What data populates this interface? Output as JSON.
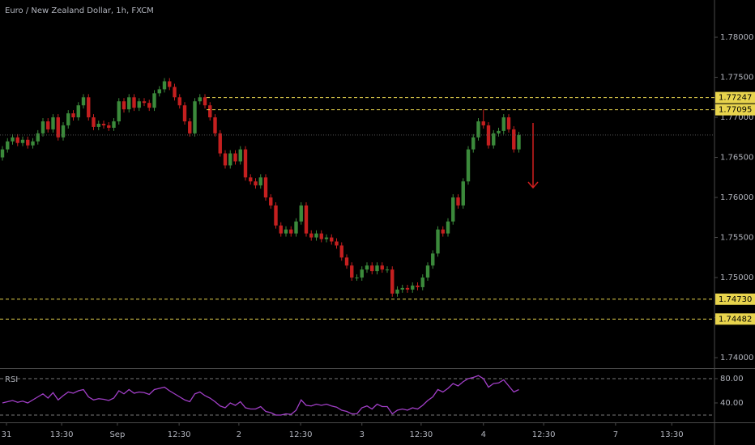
{
  "chart_data": [
    {
      "type": "candlestick",
      "title": "Euro / New Zealand Dollar, 1h, FXCM",
      "up_color": "#3b8a3b",
      "down_color": "#c41f1f",
      "ohlc": [
        [
          1.765,
          1.7664,
          1.7646,
          1.766
        ],
        [
          1.766,
          1.7674,
          1.7656,
          1.767
        ],
        [
          1.767,
          1.7679,
          1.7666,
          1.7675
        ],
        [
          1.7675,
          1.7679,
          1.7664,
          1.7668
        ],
        [
          1.7668,
          1.7676,
          1.7664,
          1.7672
        ],
        [
          1.7672,
          1.7676,
          1.7661,
          1.7665
        ],
        [
          1.7665,
          1.7674,
          1.7661,
          1.767
        ],
        [
          1.767,
          1.7684,
          1.7666,
          1.768
        ],
        [
          1.768,
          1.7699,
          1.7676,
          1.7695
        ],
        [
          1.7695,
          1.7699,
          1.7681,
          1.7685
        ],
        [
          1.7685,
          1.7704,
          1.7681,
          1.77
        ],
        [
          1.77,
          1.7704,
          1.7671,
          1.7675
        ],
        [
          1.7675,
          1.7694,
          1.7671,
          1.769
        ],
        [
          1.769,
          1.7709,
          1.7686,
          1.7705
        ],
        [
          1.7705,
          1.7709,
          1.7696,
          1.77
        ],
        [
          1.77,
          1.7719,
          1.7696,
          1.7715
        ],
        [
          1.7715,
          1.7729,
          1.7711,
          1.7725
        ],
        [
          1.7725,
          1.7729,
          1.7696,
          1.77
        ],
        [
          1.77,
          1.7704,
          1.7684,
          1.7688
        ],
        [
          1.7688,
          1.7696,
          1.7684,
          1.7692
        ],
        [
          1.7692,
          1.7696,
          1.7686,
          1.769
        ],
        [
          1.769,
          1.7694,
          1.7683,
          1.7687
        ],
        [
          1.7687,
          1.7699,
          1.7683,
          1.7695
        ],
        [
          1.7695,
          1.7724,
          1.7691,
          1.772
        ],
        [
          1.772,
          1.7724,
          1.7706,
          1.771
        ],
        [
          1.771,
          1.7729,
          1.7706,
          1.7725
        ],
        [
          1.7725,
          1.7729,
          1.7708,
          1.7712
        ],
        [
          1.7712,
          1.7724,
          1.7708,
          1.772
        ],
        [
          1.772,
          1.7724,
          1.7714,
          1.7718
        ],
        [
          1.7718,
          1.7722,
          1.7708,
          1.7712
        ],
        [
          1.7712,
          1.7734,
          1.7708,
          1.773
        ],
        [
          1.773,
          1.7739,
          1.7726,
          1.7735
        ],
        [
          1.7735,
          1.7749,
          1.7731,
          1.7745
        ],
        [
          1.7745,
          1.7749,
          1.7734,
          1.7738
        ],
        [
          1.7738,
          1.7742,
          1.7721,
          1.7725
        ],
        [
          1.7725,
          1.7729,
          1.7711,
          1.7715
        ],
        [
          1.7715,
          1.7719,
          1.7691,
          1.7695
        ],
        [
          1.7695,
          1.7699,
          1.7676,
          1.768
        ],
        [
          1.768,
          1.7724,
          1.7676,
          1.772
        ],
        [
          1.772,
          1.7729,
          1.7716,
          1.7725
        ],
        [
          1.7725,
          1.7729,
          1.7711,
          1.7715
        ],
        [
          1.7715,
          1.7719,
          1.7696,
          1.77
        ],
        [
          1.77,
          1.7704,
          1.7676,
          1.768
        ],
        [
          1.768,
          1.7684,
          1.7651,
          1.7655
        ],
        [
          1.7655,
          1.7659,
          1.7636,
          1.764
        ],
        [
          1.764,
          1.7659,
          1.7636,
          1.7655
        ],
        [
          1.7655,
          1.7659,
          1.7641,
          1.7645
        ],
        [
          1.7645,
          1.7664,
          1.7641,
          1.766
        ],
        [
          1.766,
          1.7664,
          1.7621,
          1.7625
        ],
        [
          1.7625,
          1.7629,
          1.7616,
          1.762
        ],
        [
          1.762,
          1.7624,
          1.7611,
          1.7615
        ],
        [
          1.7615,
          1.7629,
          1.7611,
          1.7625
        ],
        [
          1.7625,
          1.7629,
          1.7596,
          1.76
        ],
        [
          1.76,
          1.7604,
          1.7586,
          1.759
        ],
        [
          1.759,
          1.7594,
          1.7561,
          1.7565
        ],
        [
          1.7565,
          1.7569,
          1.7551,
          1.7555
        ],
        [
          1.7555,
          1.7564,
          1.7551,
          1.756
        ],
        [
          1.756,
          1.7564,
          1.7551,
          1.7555
        ],
        [
          1.7555,
          1.7574,
          1.7551,
          1.757
        ],
        [
          1.757,
          1.7594,
          1.7566,
          1.759
        ],
        [
          1.759,
          1.7594,
          1.7551,
          1.7555
        ],
        [
          1.7555,
          1.7559,
          1.7546,
          1.755
        ],
        [
          1.755,
          1.7559,
          1.7546,
          1.7555
        ],
        [
          1.7555,
          1.7559,
          1.7544,
          1.7548
        ],
        [
          1.7548,
          1.7554,
          1.7544,
          1.755
        ],
        [
          1.755,
          1.7554,
          1.7541,
          1.7545
        ],
        [
          1.7545,
          1.7549,
          1.7536,
          1.754
        ],
        [
          1.754,
          1.7544,
          1.7521,
          1.7525
        ],
        [
          1.7525,
          1.7529,
          1.7511,
          1.7515
        ],
        [
          1.7515,
          1.7519,
          1.7496,
          1.75
        ],
        [
          1.75,
          1.7504,
          1.7496,
          1.75
        ],
        [
          1.75,
          1.7514,
          1.7496,
          1.751
        ],
        [
          1.751,
          1.7519,
          1.7506,
          1.7515
        ],
        [
          1.7515,
          1.7519,
          1.7504,
          1.7508
        ],
        [
          1.7508,
          1.7519,
          1.7504,
          1.7515
        ],
        [
          1.7515,
          1.7519,
          1.7506,
          1.751
        ],
        [
          1.751,
          1.7514,
          1.7506,
          1.751
        ],
        [
          1.751,
          1.7514,
          1.7476,
          1.748
        ],
        [
          1.748,
          1.7489,
          1.7476,
          1.7485
        ],
        [
          1.7485,
          1.7491,
          1.7481,
          1.7487
        ],
        [
          1.7487,
          1.7491,
          1.7481,
          1.7485
        ],
        [
          1.7485,
          1.7494,
          1.7481,
          1.749
        ],
        [
          1.749,
          1.7494,
          1.7484,
          1.7488
        ],
        [
          1.7488,
          1.7504,
          1.7484,
          1.75
        ],
        [
          1.75,
          1.7519,
          1.7496,
          1.7515
        ],
        [
          1.7515,
          1.7534,
          1.7511,
          1.753
        ],
        [
          1.753,
          1.7564,
          1.7526,
          1.756
        ],
        [
          1.756,
          1.7564,
          1.7551,
          1.7555
        ],
        [
          1.7555,
          1.7574,
          1.7551,
          1.757
        ],
        [
          1.757,
          1.7604,
          1.7566,
          1.76
        ],
        [
          1.76,
          1.7604,
          1.7586,
          1.759
        ],
        [
          1.759,
          1.7624,
          1.7586,
          1.762
        ],
        [
          1.762,
          1.7664,
          1.7616,
          1.766
        ],
        [
          1.766,
          1.7679,
          1.7656,
          1.7675
        ],
        [
          1.7675,
          1.7699,
          1.7671,
          1.7695
        ],
        [
          1.7695,
          1.771,
          1.7686,
          1.769
        ],
        [
          1.769,
          1.7694,
          1.7661,
          1.7665
        ],
        [
          1.7665,
          1.7684,
          1.7661,
          1.768
        ],
        [
          1.768,
          1.7687,
          1.7676,
          1.7683
        ],
        [
          1.7683,
          1.7704,
          1.7679,
          1.77
        ],
        [
          1.77,
          1.7704,
          1.7681,
          1.7685
        ],
        [
          1.7685,
          1.7689,
          1.7656,
          1.766
        ],
        [
          1.766,
          1.7682,
          1.7656,
          1.7678
        ]
      ],
      "xlim": [
        -0.48,
        140.64
      ],
      "xticks": [
        {
          "value": 0.8,
          "label": "31"
        },
        {
          "value": 11.7,
          "label": "13:30"
        },
        {
          "value": 22.7,
          "label": "Sep"
        },
        {
          "value": 34.9,
          "label": "12:30"
        },
        {
          "value": 46.7,
          "label": "2"
        },
        {
          "value": 58.9,
          "label": "12:30"
        },
        {
          "value": 71,
          "label": "3"
        },
        {
          "value": 82.7,
          "label": "12:30"
        },
        {
          "value": 95,
          "label": "4"
        },
        {
          "value": 106.9,
          "label": "12:30"
        },
        {
          "value": 121.1,
          "label": "7"
        },
        {
          "value": 132.2,
          "label": "13:30"
        }
      ],
      "ylim": [
        1.73869,
        1.78465
      ],
      "yticks": [
        {
          "value": 1.78,
          "label": "1.78000"
        },
        {
          "value": 1.775,
          "label": "1.77500"
        },
        {
          "value": 1.77,
          "label": "1.77000"
        },
        {
          "value": 1.765,
          "label": "1.76500"
        },
        {
          "value": 1.76,
          "label": "1.76000"
        },
        {
          "value": 1.755,
          "label": "1.75500"
        },
        {
          "value": 1.75,
          "label": "1.75000"
        },
        {
          "value": 1.745,
          "label": "1.74500"
        },
        {
          "value": 1.74,
          "label": "1.74000"
        }
      ],
      "levels": [
        {
          "value": 1.77247,
          "label": "1.77247"
        },
        {
          "value": 1.77095,
          "label": "1.77095"
        },
        {
          "value": 1.7473,
          "label": "1.74730"
        },
        {
          "value": 1.74482,
          "label": "1.74482"
        }
      ],
      "level_color": "#e8d44d"
    },
    {
      "type": "line",
      "title": "RSI",
      "color": "#a23fc8",
      "values": [
        40,
        42,
        44,
        41,
        43,
        40,
        45,
        50,
        55,
        48,
        57,
        45,
        52,
        58,
        56,
        60,
        62,
        50,
        45,
        47,
        46,
        44,
        48,
        60,
        55,
        62,
        56,
        58,
        57,
        54,
        62,
        64,
        66,
        60,
        55,
        50,
        45,
        42,
        55,
        58,
        52,
        48,
        42,
        35,
        32,
        40,
        36,
        42,
        32,
        30,
        30,
        34,
        26,
        24,
        20,
        20,
        22,
        21,
        28,
        45,
        36,
        35,
        38,
        36,
        38,
        35,
        33,
        28,
        26,
        22,
        22,
        32,
        35,
        30,
        38,
        34,
        34,
        22,
        28,
        30,
        28,
        32,
        30,
        36,
        44,
        50,
        62,
        58,
        64,
        72,
        68,
        75,
        80,
        82,
        85,
        80,
        66,
        72,
        73,
        78,
        68,
        58,
        62
      ],
      "ylim": [
        8,
        96
      ],
      "yticks": [
        {
          "value": 80,
          "label": "80.00"
        },
        {
          "value": 40,
          "label": "40.00"
        }
      ],
      "levels": [
        80,
        20
      ]
    }
  ]
}
